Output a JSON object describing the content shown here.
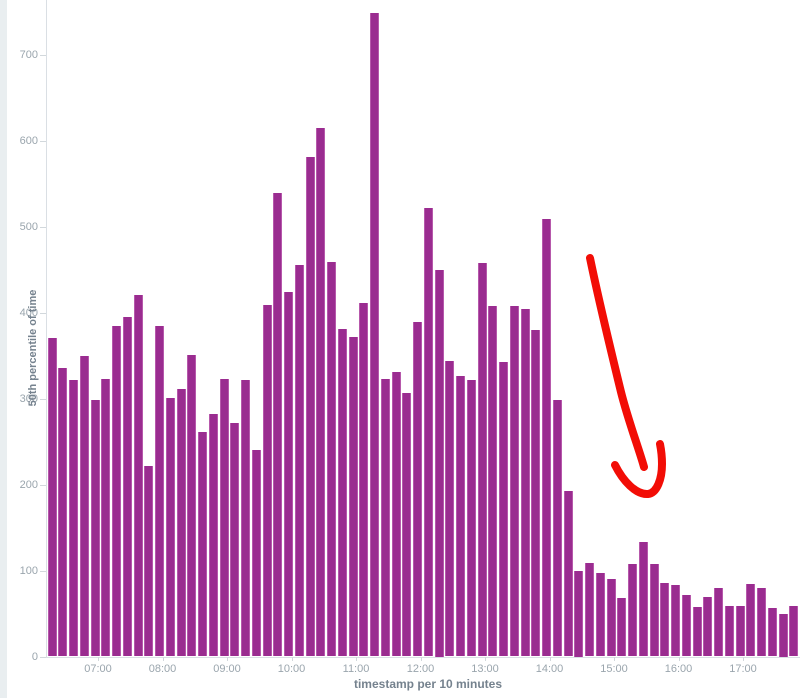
{
  "chart_data": {
    "type": "bar",
    "title": "",
    "xlabel": "timestamp per 10 minutes",
    "ylabel": "50th percentile of time",
    "ylim": [
      0,
      763
    ],
    "grid": false,
    "legend": "none",
    "bar_color": "#9a2c90",
    "y_tick_labels": [
      0,
      100,
      200,
      300,
      400,
      500,
      600,
      700
    ],
    "x_tick_labels": [
      "07:00",
      "08:00",
      "09:00",
      "10:00",
      "11:00",
      "12:00",
      "13:00",
      "14:00",
      "15:00",
      "16:00",
      "17:00"
    ],
    "categories": [
      "06:10",
      "06:20",
      "06:30",
      "06:40",
      "06:50",
      "07:00",
      "07:10",
      "07:20",
      "07:30",
      "07:40",
      "07:50",
      "08:00",
      "08:10",
      "08:20",
      "08:30",
      "08:40",
      "08:50",
      "09:00",
      "09:10",
      "09:20",
      "09:30",
      "09:40",
      "09:50",
      "10:00",
      "10:10",
      "10:20",
      "10:30",
      "10:40",
      "10:50",
      "11:00",
      "11:10",
      "11:20",
      "11:30",
      "11:40",
      "11:50",
      "12:00",
      "12:10",
      "12:20",
      "12:30",
      "12:40",
      "12:50",
      "13:00",
      "13:10",
      "13:20",
      "13:30",
      "13:40",
      "13:50",
      "14:00",
      "14:10",
      "14:20",
      "14:30",
      "14:40",
      "14:50",
      "15:00",
      "15:10",
      "15:20",
      "15:30",
      "15:40",
      "15:50",
      "16:00",
      "16:10",
      "16:20",
      "16:30",
      "16:40",
      "16:50",
      "17:00",
      "17:10",
      "17:20",
      "17:30",
      "17:40"
    ],
    "values": [
      370,
      336,
      321,
      349,
      298,
      323,
      384,
      395,
      420,
      222,
      384,
      301,
      311,
      351,
      261,
      282,
      323,
      271,
      322,
      240,
      409,
      539,
      424,
      455,
      581,
      614,
      459,
      381,
      372,
      411,
      748,
      323,
      331,
      306,
      389,
      522,
      450,
      344,
      326,
      322,
      457,
      408,
      343,
      407,
      404,
      380,
      509,
      298,
      193,
      100,
      109,
      97,
      90,
      68,
      107,
      133,
      107,
      85,
      83,
      72,
      57,
      69,
      80,
      59,
      59,
      84,
      80,
      56,
      50,
      59
    ],
    "annotation": {
      "kind": "hand-drawn arrow",
      "color": "#f20d06",
      "points_at": "drop in values after 14:00"
    }
  }
}
